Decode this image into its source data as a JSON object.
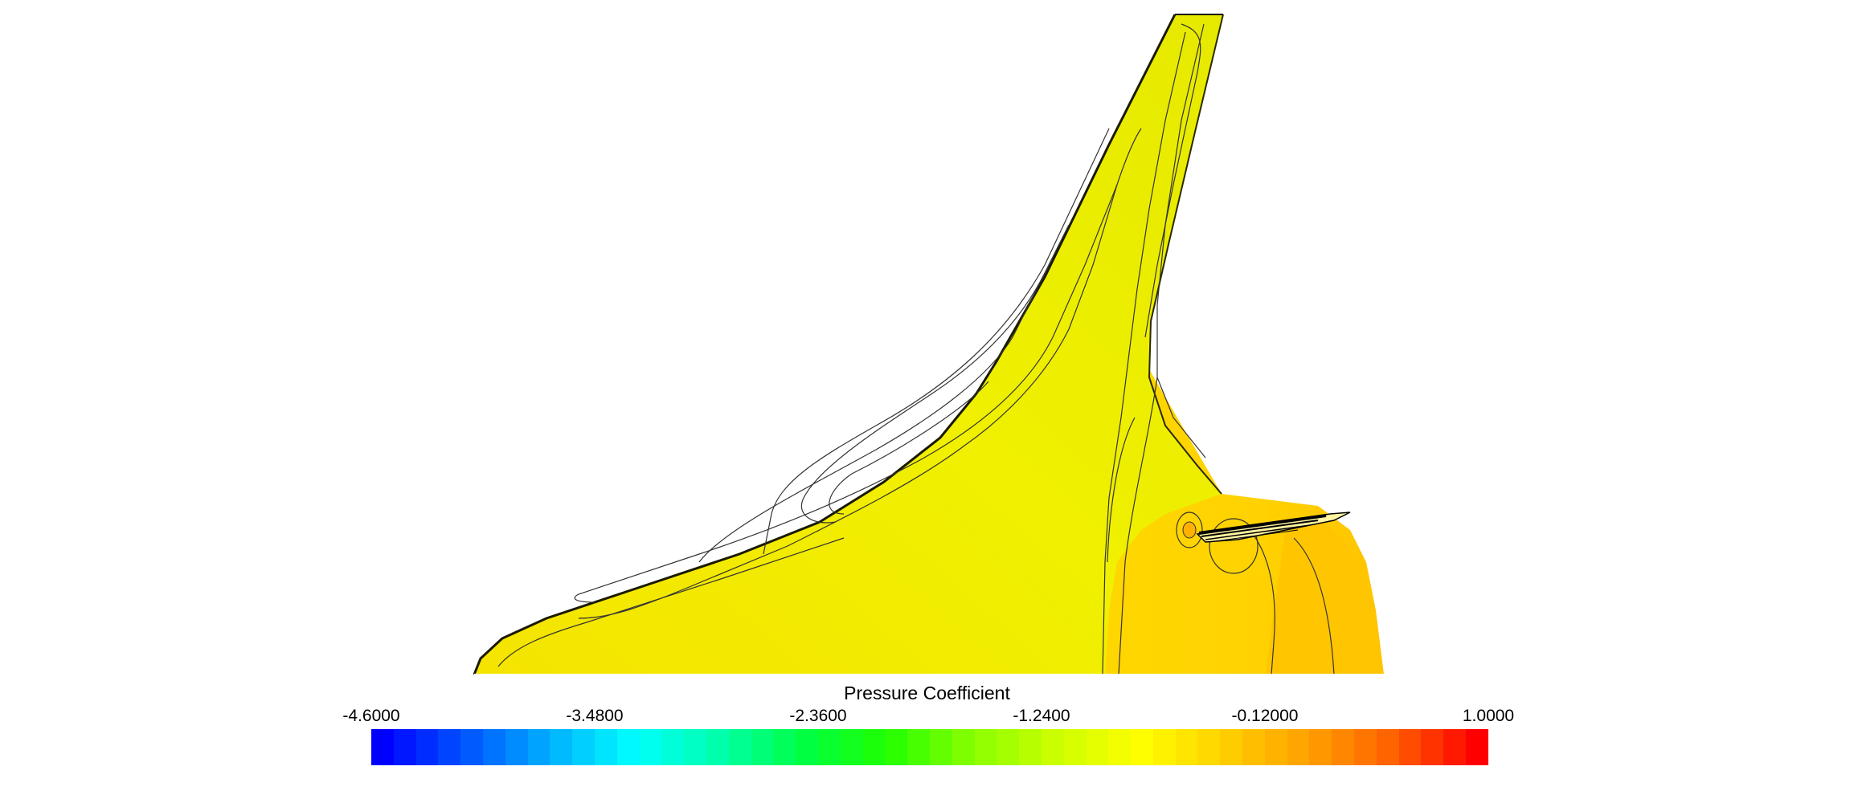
{
  "chart_data": {
    "type": "contour",
    "title": "Pressure Coefficient",
    "colorbar": {
      "min": -4.6,
      "max": 1.0,
      "levels": 50,
      "tick_labels": [
        "-4.6000",
        "-3.4800",
        "-2.3600",
        "-1.2400",
        "-0.12000",
        "1.0000"
      ],
      "tick_values": [
        -4.6,
        -3.48,
        -2.36,
        -1.24,
        -0.12,
        1.0
      ],
      "colors": [
        "#0000ff",
        "#0055ff",
        "#00b0ff",
        "#00ffff",
        "#00ffaa",
        "#00ff44",
        "#22ff00",
        "#88ff00",
        "#ccff00",
        "#ffff00",
        "#ffd000",
        "#ffa000",
        "#ff6000",
        "#ff0000"
      ]
    },
    "surface": {
      "region_colors": {
        "wing_upper": "#f1f000",
        "wing_leading_edge": "#e9e400",
        "fuselage": "#ffd500",
        "fuselage_aft": "#ffc500",
        "background": "#ffffff"
      }
    }
  }
}
